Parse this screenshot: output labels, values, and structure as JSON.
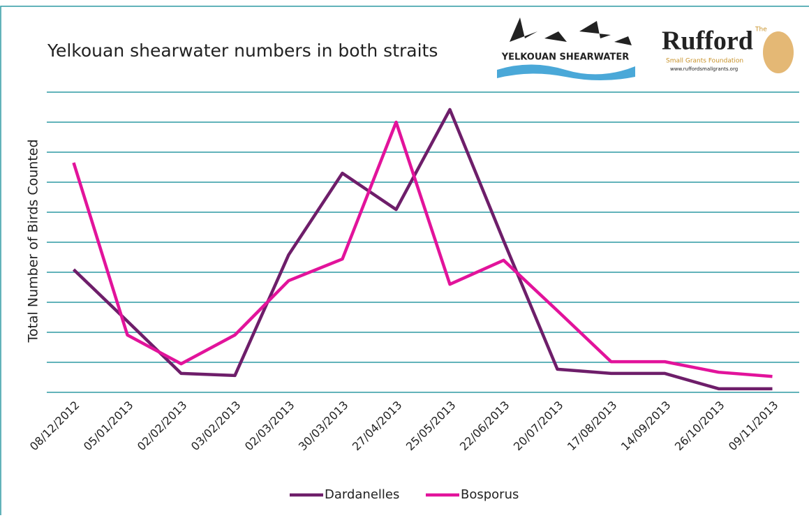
{
  "chart_data": {
    "type": "line",
    "title": "Yelkouan shearwater numbers in both straits",
    "y_label": "Total Number of Birds Counted",
    "logos": {
      "yelkouan": "YELKOUAN SHEARWATER",
      "rufford_the": "The",
      "rufford": "Rufford",
      "rufford_sub": "Small Grants Foundation",
      "rufford_url": "www.ruffordsmallgrants.org"
    },
    "categories": [
      "08/12/2012",
      "05/01/2013",
      "02/02/2013",
      "03/02/2013",
      "02/03/2013",
      "30/03/2013",
      "27/04/2013",
      "25/05/2013",
      "22/06/2013",
      "20/07/2013",
      "17/08/2013",
      "14/09/2013",
      "26/10/2013",
      "09/11/2013"
    ],
    "series": [
      {
        "name": "Dardanelles",
        "color": "#6e1e6a",
        "values": [
          4.09,
          2.37,
          0.63,
          0.56,
          4.58,
          7.3,
          6.09,
          9.42,
          5.05,
          0.77,
          0.63,
          0.63,
          0.12,
          0.12
        ]
      },
      {
        "name": "Bosporus",
        "color": "#e2139b",
        "values": [
          7.65,
          1.91,
          0.95,
          1.91,
          3.72,
          4.44,
          9.0,
          3.6,
          4.4,
          2.72,
          1.02,
          1.02,
          0.67,
          0.53
        ]
      }
    ],
    "ylim": [
      0,
      10
    ],
    "yticks": [
      0,
      1,
      2,
      3,
      4,
      5,
      6,
      7,
      8,
      9,
      10
    ],
    "grid": true,
    "legend": "bottom"
  }
}
